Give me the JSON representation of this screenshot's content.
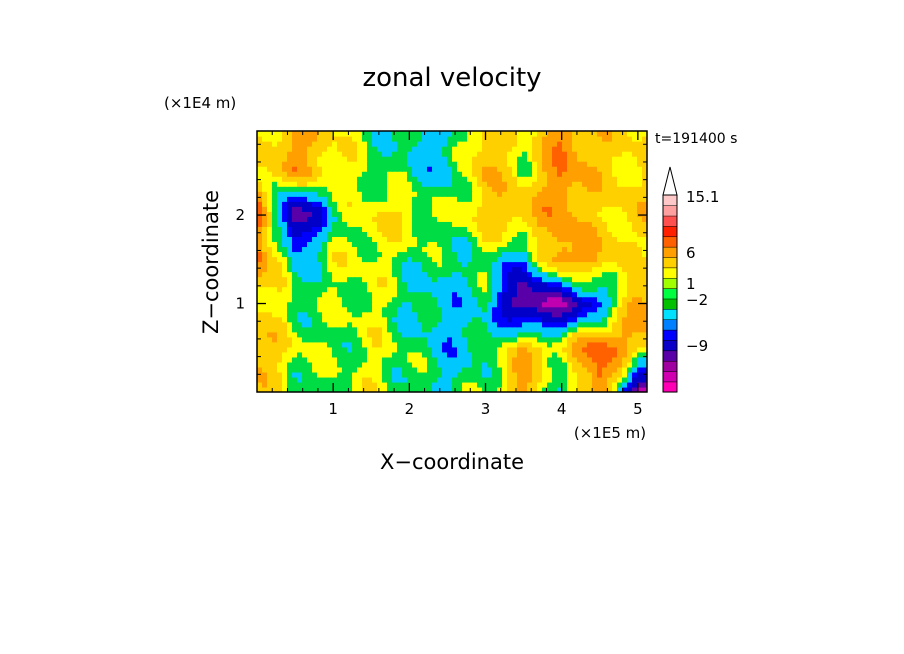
{
  "chart_data": {
    "type": "heatmap",
    "title": "zonal velocity",
    "xlabel": "X−coordinate",
    "ylabel": "Z−coordinate",
    "x_unit": "(×1E5 m)",
    "y_unit": "(×1E4 m)",
    "time_label": "t=191400 s",
    "xlim": [
      0,
      5.12
    ],
    "ylim": [
      0,
      2.95
    ],
    "x_ticks": [
      "1",
      "2",
      "3",
      "4",
      "5"
    ],
    "y_ticks": [
      "1",
      "2"
    ],
    "colorbar": {
      "labels": [
        "15.1",
        "6",
        "1",
        "−2",
        "−9"
      ],
      "colors": [
        "#ff00b4",
        "#d000b0",
        "#a000a0",
        "#5a00a8",
        "#0a00c8",
        "#0000ff",
        "#0080ff",
        "#00e0ff",
        "#00c000",
        "#00ff40",
        "#a0ff00",
        "#ffff00",
        "#ffd000",
        "#ffa000",
        "#ff6000",
        "#ff2000",
        "#ff5050",
        "#ffa0a0",
        "#ffc8c8",
        "#ffffff"
      ]
    },
    "field": {
      "x": [
        0.0,
        0.5,
        1.0,
        1.5,
        2.0,
        2.5,
        3.0,
        3.5,
        4.0,
        4.5,
        5.0
      ],
      "z": [
        0.0,
        0.5,
        1.0,
        1.5,
        2.0,
        2.5
      ],
      "values": [
        [
          4,
          1,
          1,
          2,
          1,
          0,
          1,
          6,
          -2,
          8,
          -9
        ],
        [
          6,
          2,
          1,
          2,
          1,
          -1,
          0,
          5,
          3,
          9,
          4
        ],
        [
          3,
          1,
          1,
          2,
          0,
          -1,
          0,
          -9,
          -8,
          -3,
          6
        ],
        [
          8,
          -1,
          2,
          2,
          1,
          0,
          1,
          -2,
          7,
          5,
          2
        ],
        [
          9,
          -9,
          0,
          3,
          3,
          1,
          4,
          5,
          6,
          3,
          4
        ],
        [
          2,
          6,
          3,
          1,
          0,
          -1,
          5,
          2,
          7,
          4,
          3
        ]
      ]
    }
  }
}
